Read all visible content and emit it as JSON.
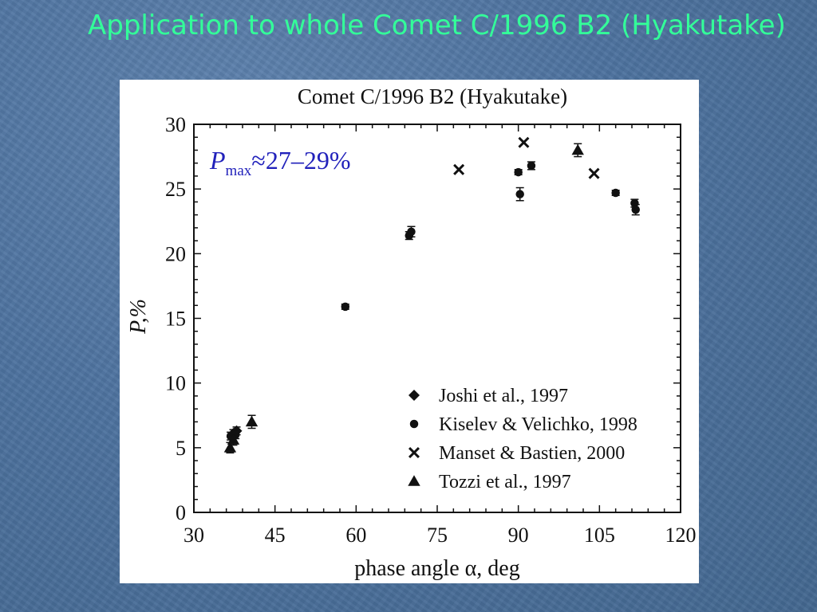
{
  "slide": {
    "title": "Application to whole Comet C/1996 B2 (Hyakutake)",
    "title_color": "#33ff99",
    "background_color": "#4d729f"
  },
  "chart_data": {
    "type": "scatter",
    "title": "Comet C/1996 B2 (Hyakutake)",
    "xlabel": "phase angle α, deg",
    "ylabel": "P,%",
    "xlim": [
      30,
      120
    ],
    "ylim": [
      0,
      30
    ],
    "xticks": [
      30,
      45,
      60,
      75,
      90,
      105,
      120
    ],
    "yticks": [
      0,
      5,
      10,
      15,
      20,
      25,
      30
    ],
    "grid": false,
    "legend_position": "bottom-right",
    "annotation": {
      "main": "P",
      "sub": "max",
      "rest": "≈27–29%",
      "color": "#2222bb"
    },
    "series": [
      {
        "name": "Joshi et al., 1997",
        "marker": "diamond",
        "points": [
          {
            "x": 37.3,
            "y": 6.1,
            "err": 0.3
          },
          {
            "x": 37.9,
            "y": 6.3,
            "err": 0.3
          }
        ]
      },
      {
        "name": "Kiselev & Velichko, 1998",
        "marker": "circle",
        "points": [
          {
            "x": 36.8,
            "y": 5.9,
            "err": 0.3
          },
          {
            "x": 37.7,
            "y": 6.0,
            "err": 0.3
          },
          {
            "x": 58.0,
            "y": 15.9,
            "err": 0.2
          },
          {
            "x": 69.8,
            "y": 21.4,
            "err": 0.3
          },
          {
            "x": 70.2,
            "y": 21.7,
            "err": 0.4
          },
          {
            "x": 90.0,
            "y": 26.3,
            "err": 0.2
          },
          {
            "x": 90.3,
            "y": 24.6,
            "err": 0.5
          },
          {
            "x": 92.4,
            "y": 26.8,
            "err": 0.3
          },
          {
            "x": 108.0,
            "y": 24.7,
            "err": 0.2
          },
          {
            "x": 111.5,
            "y": 23.9,
            "err": 0.3
          },
          {
            "x": 111.7,
            "y": 23.4,
            "err": 0.4
          }
        ]
      },
      {
        "name": "Manset & Bastien, 2000",
        "marker": "cross",
        "points": [
          {
            "x": 79.0,
            "y": 26.5,
            "err": 0.1
          },
          {
            "x": 91.0,
            "y": 28.6,
            "err": 0.1
          },
          {
            "x": 104.0,
            "y": 26.2,
            "err": 0.1
          }
        ]
      },
      {
        "name": "Tozzi et al., 1997",
        "marker": "triangle",
        "points": [
          {
            "x": 36.7,
            "y": 5.0,
            "err": 0.4
          },
          {
            "x": 37.3,
            "y": 5.6,
            "err": 0.4
          },
          {
            "x": 40.7,
            "y": 7.0,
            "err": 0.5
          },
          {
            "x": 101.0,
            "y": 28.0,
            "err": 0.5
          }
        ]
      }
    ]
  }
}
